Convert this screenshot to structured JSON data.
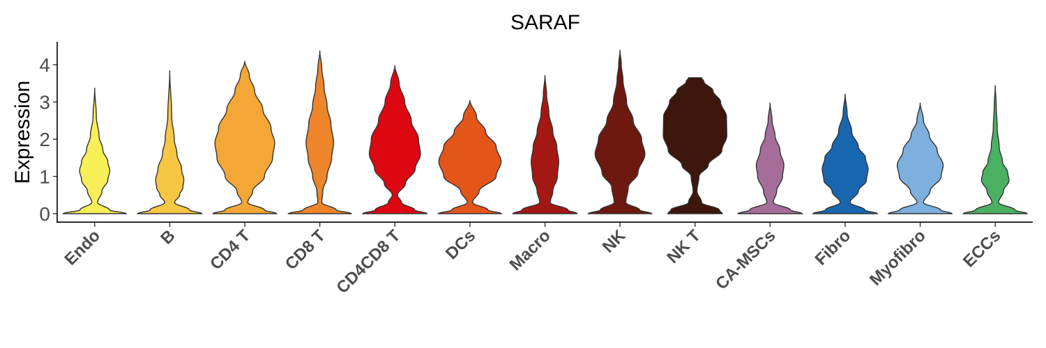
{
  "chart_data": {
    "type": "violin",
    "title": "SARAF",
    "xlabel": "",
    "ylabel": "Expression",
    "ylim": [
      -0.25,
      4.6
    ],
    "yticks": [
      0,
      1,
      2,
      3,
      4
    ],
    "grid": false,
    "legend": "none",
    "categories": [
      "Endo",
      "B",
      "CD4 T",
      "CD8 T",
      "CD4CD8 T",
      "DCs",
      "Macro",
      "NK",
      "NK T",
      "CA-MSCs",
      "Fibro",
      "Myofibro",
      "ECCs"
    ],
    "series": [
      {
        "category": "Endo",
        "color": "#f7ef56",
        "max": 3.38,
        "profile": [
          [
            0,
            0.96
          ],
          [
            0.1,
            0.45
          ],
          [
            0.3,
            0.09
          ],
          [
            0.6,
            0.22
          ],
          [
            0.9,
            0.4
          ],
          [
            1.15,
            0.46
          ],
          [
            1.4,
            0.4
          ],
          [
            1.7,
            0.25
          ],
          [
            2.1,
            0.13
          ],
          [
            2.6,
            0.05
          ],
          [
            3.38,
            0
          ]
        ]
      },
      {
        "category": "B",
        "color": "#f7c744",
        "max": 3.85,
        "profile": [
          [
            0,
            0.98
          ],
          [
            0.1,
            0.6
          ],
          [
            0.3,
            0.15
          ],
          [
            0.5,
            0.3
          ],
          [
            0.7,
            0.4
          ],
          [
            0.9,
            0.43
          ],
          [
            1.2,
            0.36
          ],
          [
            1.6,
            0.22
          ],
          [
            2.0,
            0.14
          ],
          [
            2.6,
            0.06
          ],
          [
            3.85,
            0
          ]
        ]
      },
      {
        "category": "CD4 T",
        "color": "#f4a637",
        "max": 4.1,
        "profile": [
          [
            0,
            0.97
          ],
          [
            0.1,
            0.6
          ],
          [
            0.3,
            0.09
          ],
          [
            0.6,
            0.24
          ],
          [
            1.0,
            0.6
          ],
          [
            1.5,
            0.85
          ],
          [
            1.9,
            0.91
          ],
          [
            2.3,
            0.8
          ],
          [
            2.8,
            0.55
          ],
          [
            3.3,
            0.3
          ],
          [
            3.7,
            0.14
          ],
          [
            4.1,
            0
          ]
        ]
      },
      {
        "category": "CD8 T",
        "color": "#ee852a",
        "max": 4.38,
        "profile": [
          [
            0,
            0.96
          ],
          [
            0.1,
            0.5
          ],
          [
            0.3,
            0.06
          ],
          [
            0.6,
            0.09
          ],
          [
            1.0,
            0.22
          ],
          [
            1.5,
            0.36
          ],
          [
            1.9,
            0.42
          ],
          [
            2.4,
            0.34
          ],
          [
            2.9,
            0.22
          ],
          [
            3.4,
            0.13
          ],
          [
            3.9,
            0.06
          ],
          [
            4.38,
            0
          ]
        ]
      },
      {
        "category": "CD4CD8 T",
        "color": "#dc0711",
        "max": 3.98,
        "profile": [
          [
            0,
            0.98
          ],
          [
            0.1,
            0.6
          ],
          [
            0.3,
            0.2
          ],
          [
            0.5,
            0.08
          ],
          [
            0.8,
            0.32
          ],
          [
            1.2,
            0.62
          ],
          [
            1.6,
            0.78
          ],
          [
            2.0,
            0.72
          ],
          [
            2.5,
            0.5
          ],
          [
            3.0,
            0.3
          ],
          [
            3.5,
            0.13
          ],
          [
            3.98,
            0
          ]
        ]
      },
      {
        "category": "DCs",
        "color": "#e4551a",
        "max": 3.05,
        "profile": [
          [
            0,
            0.96
          ],
          [
            0.1,
            0.55
          ],
          [
            0.3,
            0.08
          ],
          [
            0.6,
            0.28
          ],
          [
            1.0,
            0.8
          ],
          [
            1.4,
            0.95
          ],
          [
            1.8,
            0.8
          ],
          [
            2.2,
            0.48
          ],
          [
            2.6,
            0.2
          ],
          [
            3.05,
            0
          ]
        ]
      },
      {
        "category": "Macro",
        "color": "#a31812",
        "max": 3.72,
        "profile": [
          [
            0,
            0.98
          ],
          [
            0.1,
            0.7
          ],
          [
            0.3,
            0.16
          ],
          [
            0.6,
            0.24
          ],
          [
            1.0,
            0.38
          ],
          [
            1.4,
            0.42
          ],
          [
            1.8,
            0.36
          ],
          [
            2.2,
            0.24
          ],
          [
            2.7,
            0.12
          ],
          [
            3.2,
            0.05
          ],
          [
            3.72,
            0
          ]
        ]
      },
      {
        "category": "NK",
        "color": "#6d1910",
        "max": 4.4,
        "profile": [
          [
            0,
            0.97
          ],
          [
            0.1,
            0.6
          ],
          [
            0.3,
            0.18
          ],
          [
            0.7,
            0.25
          ],
          [
            1.1,
            0.55
          ],
          [
            1.6,
            0.76
          ],
          [
            2.0,
            0.66
          ],
          [
            2.5,
            0.4
          ],
          [
            3.0,
            0.2
          ],
          [
            3.6,
            0.09
          ],
          [
            4.0,
            0.04
          ],
          [
            4.4,
            0
          ]
        ]
      },
      {
        "category": "NK T",
        "color": "#3d160c",
        "max": 3.65,
        "profile": [
          [
            0,
            0.83
          ],
          [
            0.1,
            0.74
          ],
          [
            0.3,
            0.2
          ],
          [
            0.6,
            0.06
          ],
          [
            1.0,
            0.12
          ],
          [
            1.3,
            0.4
          ],
          [
            1.7,
            0.82
          ],
          [
            2.1,
            0.97
          ],
          [
            2.6,
            0.96
          ],
          [
            3.0,
            0.78
          ],
          [
            3.3,
            0.55
          ],
          [
            3.55,
            0.27
          ],
          [
            3.65,
            0.2
          ]
        ]
      },
      {
        "category": "CA-MSCs",
        "color": "#a66d9b",
        "max": 2.98,
        "profile": [
          [
            0,
            0.98
          ],
          [
            0.1,
            0.62
          ],
          [
            0.3,
            0.1
          ],
          [
            0.6,
            0.2
          ],
          [
            1.0,
            0.38
          ],
          [
            1.3,
            0.42
          ],
          [
            1.7,
            0.3
          ],
          [
            2.1,
            0.15
          ],
          [
            2.5,
            0.06
          ],
          [
            2.98,
            0
          ]
        ]
      },
      {
        "category": "Fibro",
        "color": "#1866b0",
        "max": 3.22,
        "profile": [
          [
            0,
            0.98
          ],
          [
            0.1,
            0.6
          ],
          [
            0.3,
            0.15
          ],
          [
            0.6,
            0.4
          ],
          [
            0.9,
            0.65
          ],
          [
            1.2,
            0.7
          ],
          [
            1.5,
            0.62
          ],
          [
            1.8,
            0.4
          ],
          [
            2.2,
            0.2
          ],
          [
            2.7,
            0.06
          ],
          [
            3.22,
            0
          ]
        ]
      },
      {
        "category": "Myofibro",
        "color": "#7db0de",
        "max": 2.98,
        "profile": [
          [
            0,
            0.97
          ],
          [
            0.1,
            0.62
          ],
          [
            0.3,
            0.1
          ],
          [
            0.6,
            0.3
          ],
          [
            1.0,
            0.64
          ],
          [
            1.3,
            0.7
          ],
          [
            1.7,
            0.52
          ],
          [
            2.1,
            0.28
          ],
          [
            2.5,
            0.1
          ],
          [
            2.98,
            0
          ]
        ]
      },
      {
        "category": "ECCs",
        "color": "#4cb063",
        "max": 3.45,
        "profile": [
          [
            0,
            0.97
          ],
          [
            0.1,
            0.6
          ],
          [
            0.3,
            0.1
          ],
          [
            0.6,
            0.25
          ],
          [
            0.9,
            0.42
          ],
          [
            1.1,
            0.38
          ],
          [
            1.4,
            0.22
          ],
          [
            1.8,
            0.12
          ],
          [
            2.3,
            0.06
          ],
          [
            2.9,
            0.03
          ],
          [
            3.45,
            0
          ]
        ]
      }
    ]
  }
}
